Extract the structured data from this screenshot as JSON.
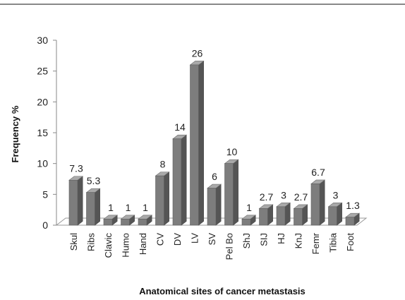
{
  "chart_data": {
    "type": "bar",
    "title": "",
    "xlabel": "Anatomical sites of cancer metastasis",
    "ylabel": "Frequency %",
    "ylim": [
      0,
      30
    ],
    "yticks": [
      "0",
      "5",
      "10",
      "15",
      "20",
      "25",
      "30"
    ],
    "grid": false,
    "legend": "none",
    "bar_color": "#7d7d7d",
    "categories": [
      "Skul",
      "Ribs",
      "Clavic",
      "Humo",
      "Hand",
      "CV",
      "DV",
      "LV",
      "SV",
      "Pel Bo",
      "ShJ",
      "SIJ",
      "HJ",
      "KnJ",
      "Femr",
      "Tibia",
      "Foot"
    ],
    "values": [
      7.3,
      5.3,
      1,
      1,
      1,
      8,
      14,
      26,
      6,
      10,
      1,
      2.7,
      3,
      2.7,
      6.7,
      3,
      1.3
    ],
    "data_labels": [
      "7.3",
      "5.3",
      "1",
      "1",
      "1",
      "8",
      "14",
      "26",
      "6",
      "10",
      "1",
      "2.7",
      "3",
      "2.7",
      "6.7",
      "3",
      "1.3"
    ]
  }
}
